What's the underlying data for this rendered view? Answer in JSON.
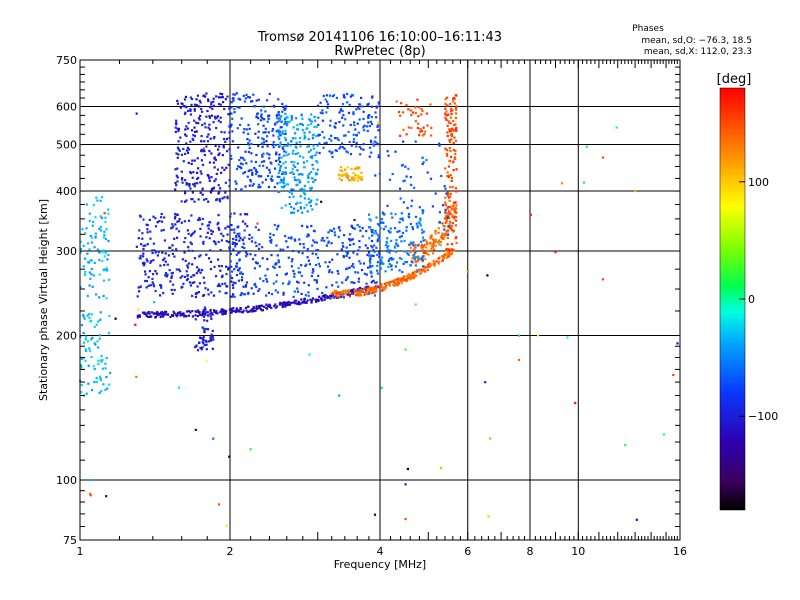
{
  "header": {
    "title": "Tromsø 20141106 16:10:00–16:11:43",
    "subtitle": "RwPretec (8p)"
  },
  "stats": {
    "heading": "Phases",
    "line_o": "mean, sd,O: −76.3, 18.5",
    "line_x": "mean, sd,X: 112.0, 23.3"
  },
  "colorbar": {
    "unit_label": "[deg]",
    "ticks": [
      "100",
      "0",
      "−100"
    ],
    "tick_values": [
      100,
      0,
      -100
    ],
    "range": [
      -180,
      180
    ]
  },
  "chart_data": {
    "type": "scatter",
    "xlabel": "Frequency [MHz]",
    "ylabel": "Stationary phase Virtual Height [km]",
    "xscale": "log",
    "yscale": "log",
    "xlim": [
      1,
      16
    ],
    "ylim": [
      75,
      750
    ],
    "xticks": [
      1,
      2,
      4,
      6,
      8,
      10,
      16
    ],
    "xtick_labels": [
      "1",
      "2",
      "4",
      "6",
      "8",
      "10",
      "16"
    ],
    "yticks": [
      75,
      100,
      200,
      300,
      400,
      500,
      600,
      750
    ],
    "ytick_labels": [
      "75",
      "100",
      "200",
      "300",
      "400",
      "500",
      "600",
      "750"
    ],
    "grid": true,
    "colorscale": "rainbow",
    "color_variable": "phase [deg]",
    "clusters": [
      {
        "xr": [
          1.3,
          3.8
        ],
        "h0": 218,
        "h1": 248,
        "band": 6,
        "phase": -115,
        "n": 320
      },
      {
        "xr": [
          3.2,
          5.7
        ],
        "h0": 240,
        "h1": 300,
        "band": 8,
        "phase": 140,
        "n": 260
      },
      {
        "xr": [
          4.6,
          5.7
        ],
        "h0": 280,
        "h1": 360,
        "band": 30,
        "phase": 140,
        "n": 120
      },
      {
        "xr": [
          5.4,
          5.7
        ],
        "yr": [
          300,
          640
        ],
        "phase": 150,
        "n": 160
      },
      {
        "xr": [
          1.3,
          2.2
        ],
        "yr": [
          240,
          360
        ],
        "phase": -95,
        "n": 320
      },
      {
        "xr": [
          2.0,
          4.0
        ],
        "yr": [
          240,
          340
        ],
        "phase": -75,
        "n": 320
      },
      {
        "xr": [
          3.8,
          4.9
        ],
        "yr": [
          270,
          360
        ],
        "phase": -55,
        "n": 150
      },
      {
        "xr": [
          1.55,
          2.0
        ],
        "yr": [
          380,
          640
        ],
        "phase": -100,
        "n": 260
      },
      {
        "xr": [
          2.0,
          2.6
        ],
        "yr": [
          400,
          640
        ],
        "phase": -75,
        "n": 220
      },
      {
        "xr": [
          2.5,
          3.0
        ],
        "yr": [
          360,
          580
        ],
        "phase": -40,
        "n": 220
      },
      {
        "xr": [
          3.0,
          4.0
        ],
        "yr": [
          470,
          640
        ],
        "phase": -70,
        "n": 150
      },
      {
        "xr": [
          3.3,
          3.7
        ],
        "yr": [
          420,
          450
        ],
        "phase": 110,
        "n": 50
      },
      {
        "xr": [
          4.3,
          5.1
        ],
        "yr": [
          520,
          640
        ],
        "phase": 150,
        "n": 40
      },
      {
        "xr": [
          1.0,
          1.15
        ],
        "yr": [
          150,
          390
        ],
        "phase": -30,
        "n": 160
      },
      {
        "xr": [
          1.7,
          1.85
        ],
        "yr": [
          185,
          230
        ],
        "phase": -100,
        "n": 50
      },
      {
        "xr": [
          3.9,
          5.5
        ],
        "yr": [
          320,
          520
        ],
        "phase": -70,
        "n": 60
      },
      {
        "xr": [
          1.0,
          16.0
        ],
        "yr": [
          80,
          640
        ],
        "phase": 0,
        "n": 45,
        "phase_spread": 180
      }
    ],
    "isolated_points": [
      {
        "x": 11.2,
        "y": 470,
        "phase": 150
      },
      {
        "x": 13.0,
        "y": 400,
        "phase": 110
      },
      {
        "x": 11.2,
        "y": 262,
        "phase": 150
      },
      {
        "x": 6.0,
        "y": 272,
        "phase": 130
      },
      {
        "x": 7.6,
        "y": 200,
        "phase": -30
      },
      {
        "x": 8.3,
        "y": 200,
        "phase": 90
      },
      {
        "x": 7.6,
        "y": 178,
        "phase": 140
      },
      {
        "x": 6.5,
        "y": 160,
        "phase": -100
      },
      {
        "x": 4.5,
        "y": 187,
        "phase": 20
      },
      {
        "x": 5.3,
        "y": 106,
        "phase": 110
      },
      {
        "x": 6.6,
        "y": 84,
        "phase": 100
      },
      {
        "x": 4.5,
        "y": 83,
        "phase": 150
      },
      {
        "x": 4.5,
        "y": 98,
        "phase": -100
      },
      {
        "x": 1.85,
        "y": 122,
        "phase": -60
      },
      {
        "x": 2.2,
        "y": 116,
        "phase": 20
      },
      {
        "x": 1.9,
        "y": 89,
        "phase": 150
      },
      {
        "x": 1.05,
        "y": 93,
        "phase": 150
      },
      {
        "x": 1.05,
        "y": 100,
        "phase": -30
      }
    ]
  }
}
